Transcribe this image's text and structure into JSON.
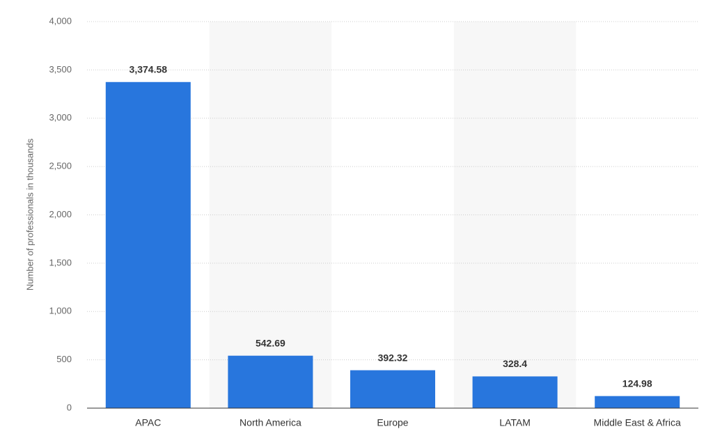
{
  "chart_data": {
    "type": "bar",
    "y_axis_label": "Number of professionals in thousands",
    "categories": [
      "APAC",
      "North America",
      "Europe",
      "LATAM",
      "Middle East & Africa"
    ],
    "values": [
      3374.58,
      542.69,
      392.32,
      328.4,
      124.98
    ],
    "value_labels": [
      "3,374.58",
      "542.69",
      "392.32",
      "328.4",
      "124.98"
    ],
    "color": "#2876dd",
    "ylim": [
      0,
      4000
    ],
    "yticks": [
      0,
      500,
      {
        "value": 1000,
        "label": "1,000"
      },
      {
        "value": 1500,
        "label": "1,500"
      },
      {
        "value": 2000,
        "label": "2,000"
      },
      {
        "value": 2500,
        "label": "2,500"
      },
      {
        "value": 3000,
        "label": "3,000"
      },
      {
        "value": 3500,
        "label": "3,500"
      },
      {
        "value": 4000,
        "label": "4,000"
      }
    ],
    "grid": true
  }
}
